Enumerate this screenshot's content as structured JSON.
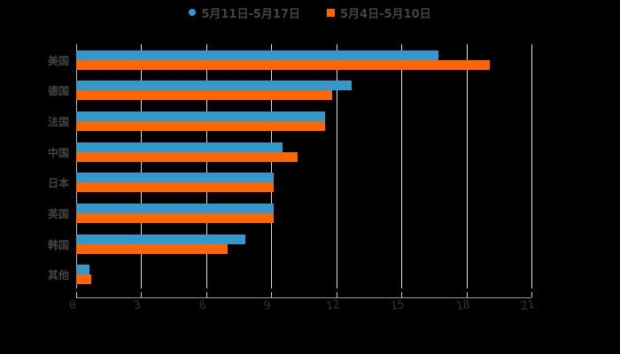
{
  "chart_data": {
    "type": "bar",
    "orientation": "horizontal",
    "title": "",
    "xlabel": "",
    "ylabel": "",
    "categories": [
      "美国",
      "德国",
      "法国",
      "中国",
      "日本",
      "英国",
      "韩国",
      "其他"
    ],
    "series": [
      {
        "name": "5月11日-5月17日",
        "color": "#3399cc",
        "values": [
          16.7,
          12.7,
          11.5,
          9.5,
          9.1,
          9.1,
          7.8,
          0.6
        ]
      },
      {
        "name": "5月4日-5月10日",
        "color": "#ff6600",
        "values": [
          19.1,
          11.8,
          11.5,
          10.2,
          9.1,
          9.1,
          7.0,
          0.7
        ]
      }
    ],
    "xlim": [
      0,
      21
    ],
    "xticks": [
      "0",
      "3",
      "6",
      "9",
      "12",
      "15",
      "18",
      "21"
    ],
    "grid": true,
    "legend_position": "top"
  }
}
